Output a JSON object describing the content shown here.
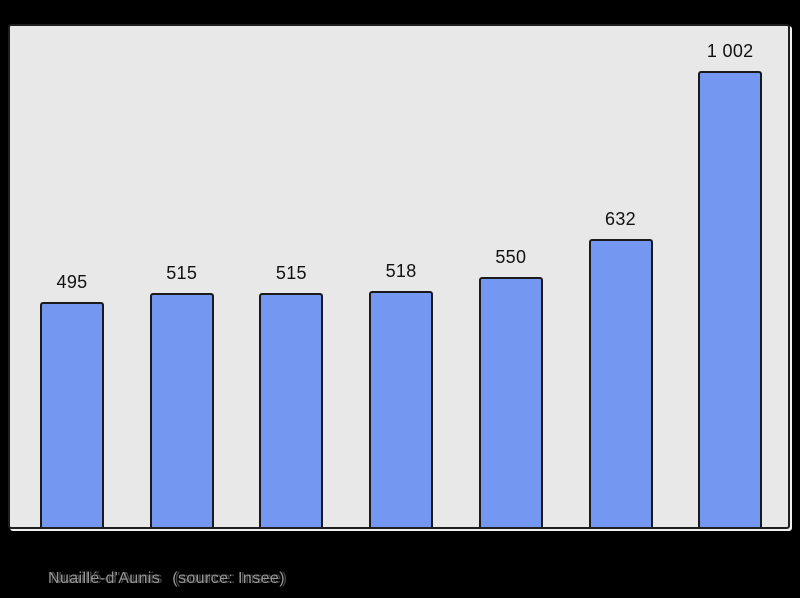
{
  "chart_data": {
    "type": "bar",
    "values": [
      495,
      515,
      515,
      518,
      550,
      632,
      1002
    ],
    "labels": [
      "495",
      "515",
      "515",
      "518",
      "550",
      "632",
      "1 002"
    ],
    "title": "",
    "xlabel": "",
    "ylabel": "",
    "ylim": [
      0,
      1002
    ],
    "grid": false,
    "legend": null,
    "x_tick_labels_visible": false,
    "y_axis_visible": false,
    "bar_color": "#7497f2",
    "bar_border_color": "#1a1a1a",
    "value_label_color": "#111111",
    "panel_background": "#e8e8e8",
    "panel_border_color": "#1f1f1f",
    "panel_shadow_color": "#f1f1f1",
    "outer_background": "#000000"
  },
  "caption": {
    "name": "Nuaillé-d'Aunis",
    "source": "(source: Insee)",
    "color": "#969696"
  }
}
